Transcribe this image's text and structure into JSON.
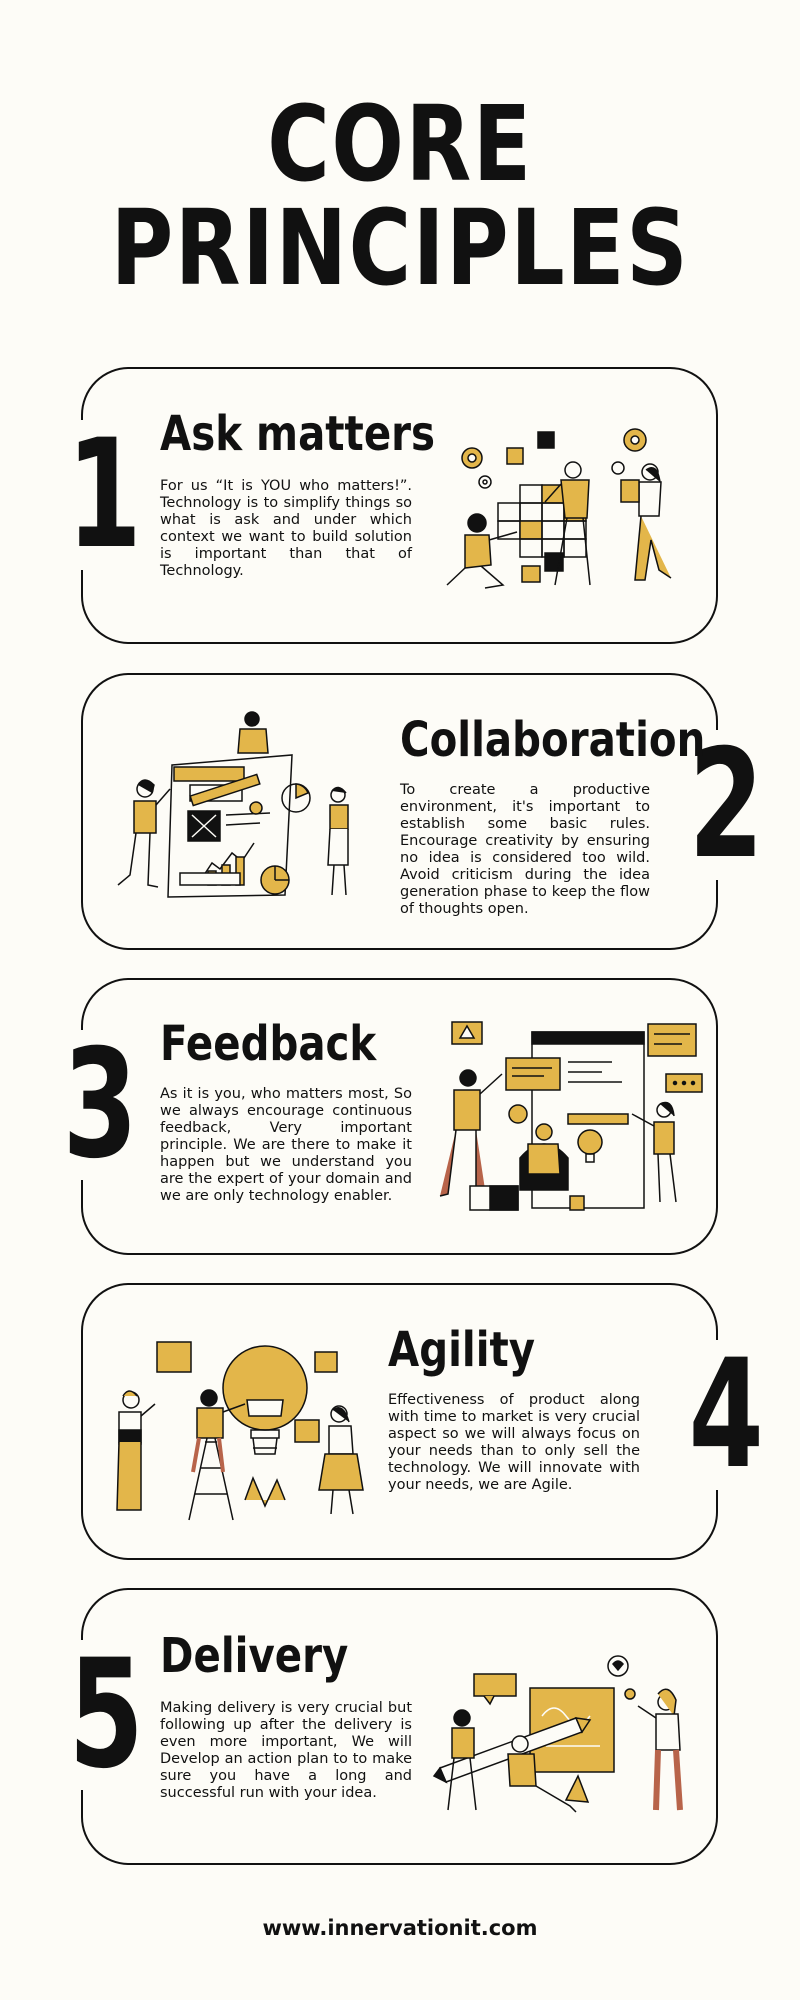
{
  "page": {
    "title": "CORE PRINCIPLES",
    "footer_url": "www.innervationit.com"
  },
  "colors": {
    "background": "#fdfcf7",
    "accent_mustard": "#e3b64a",
    "ink": "#111111",
    "terracotta": "#b8644a"
  },
  "principles": [
    {
      "number": "1",
      "heading": "Ask matters",
      "text": "For us “It is YOU who matters!”. Technology is to simplify things so what is ask and under which context we want to build solution is important than that of Technology.",
      "illustration": "team-building-blocks-illustration"
    },
    {
      "number": "2",
      "heading": "Collaboration",
      "text": "To create a productive environment, it's important to establish some basic rules. Encourage creativity by ensuring no idea is considered too wild. Avoid criticism during the idea generation phase to keep the flow of thoughts open.",
      "illustration": "team-dashboard-collaboration-illustration"
    },
    {
      "number": "3",
      "heading": "Feedback",
      "text": "As it is you, who matters most, So we always encourage continuous feedback, Very important principle. We are there to make it happen but we understand you are the expert of your domain and we are only technology enabler.",
      "illustration": "feedback-screen-chat-illustration"
    },
    {
      "number": "4",
      "heading": "Agility",
      "text": "Effectiveness of product along with time to market is very crucial aspect so we will always focus on your needs than to only sell the technology. We will innovate with your needs, we are Agile.",
      "illustration": "lightbulb-puzzle-ladder-illustration"
    },
    {
      "number": "5",
      "heading": "Delivery",
      "text": "Making delivery is very crucial but following up after the delivery is even more important, We will Develop an action plan to to make sure you have a long and successful run with your idea.",
      "illustration": "giant-pencil-board-illustration"
    }
  ]
}
